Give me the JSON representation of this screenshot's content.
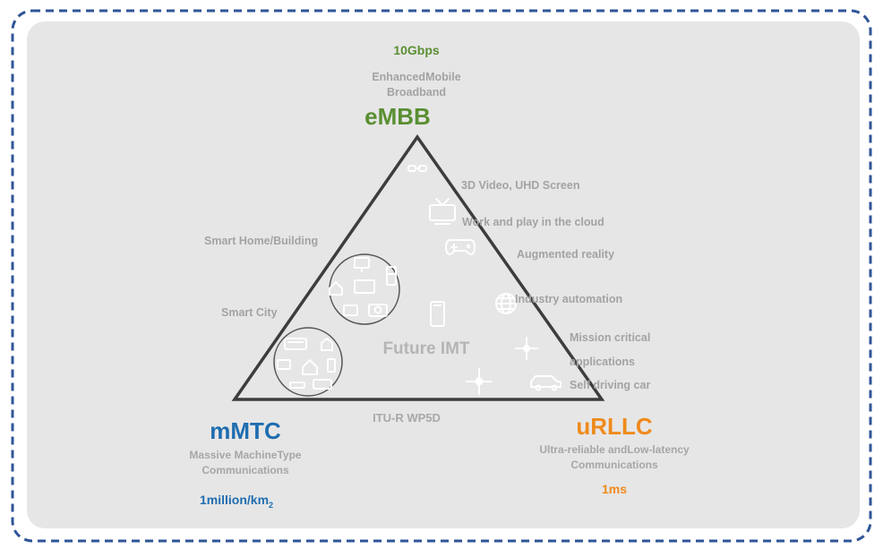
{
  "corners": {
    "embb": {
      "rate": "10Gbps",
      "desc_line1": "EnhancedMobile",
      "desc_line2": "Broadband",
      "title": "eMBB"
    },
    "mmtc": {
      "title": "mMTC",
      "desc_line1": "Massive MachineType",
      "desc_line2": "Communications",
      "density": "1million/km",
      "density_sub": "2"
    },
    "urllc": {
      "title": "uRLLC",
      "desc_line1": "Ultra-reliable andLow-latency",
      "desc_line2": "Communications",
      "latency": "1ms"
    }
  },
  "use_cases": {
    "video": "3D Video, UHD Screen",
    "cloud": "Work and play in the cloud",
    "ar": "Augmented reality",
    "industry": "Industry automation",
    "mission1": "Mission critical",
    "mission2": "applications",
    "selfdriving": "Self driving car",
    "smarthome": "Smart Home/Building",
    "smartcity": "Smart City"
  },
  "center_label": "Future IMT",
  "bottom_label": "ITU-R WP5D",
  "colors": {
    "embb": "#5a8f32",
    "mmtc": "#1f6db0",
    "urllc": "#ef8a1c",
    "frame": "#2f5597",
    "panel": "#e6e6e6"
  },
  "icons": [
    "vr-glasses-icon",
    "tv-icon",
    "gamepad-icon",
    "globe-icon",
    "smartphone-icon",
    "drone-icon",
    "car-icon",
    "house-icon",
    "truck-icon",
    "building-icon"
  ]
}
